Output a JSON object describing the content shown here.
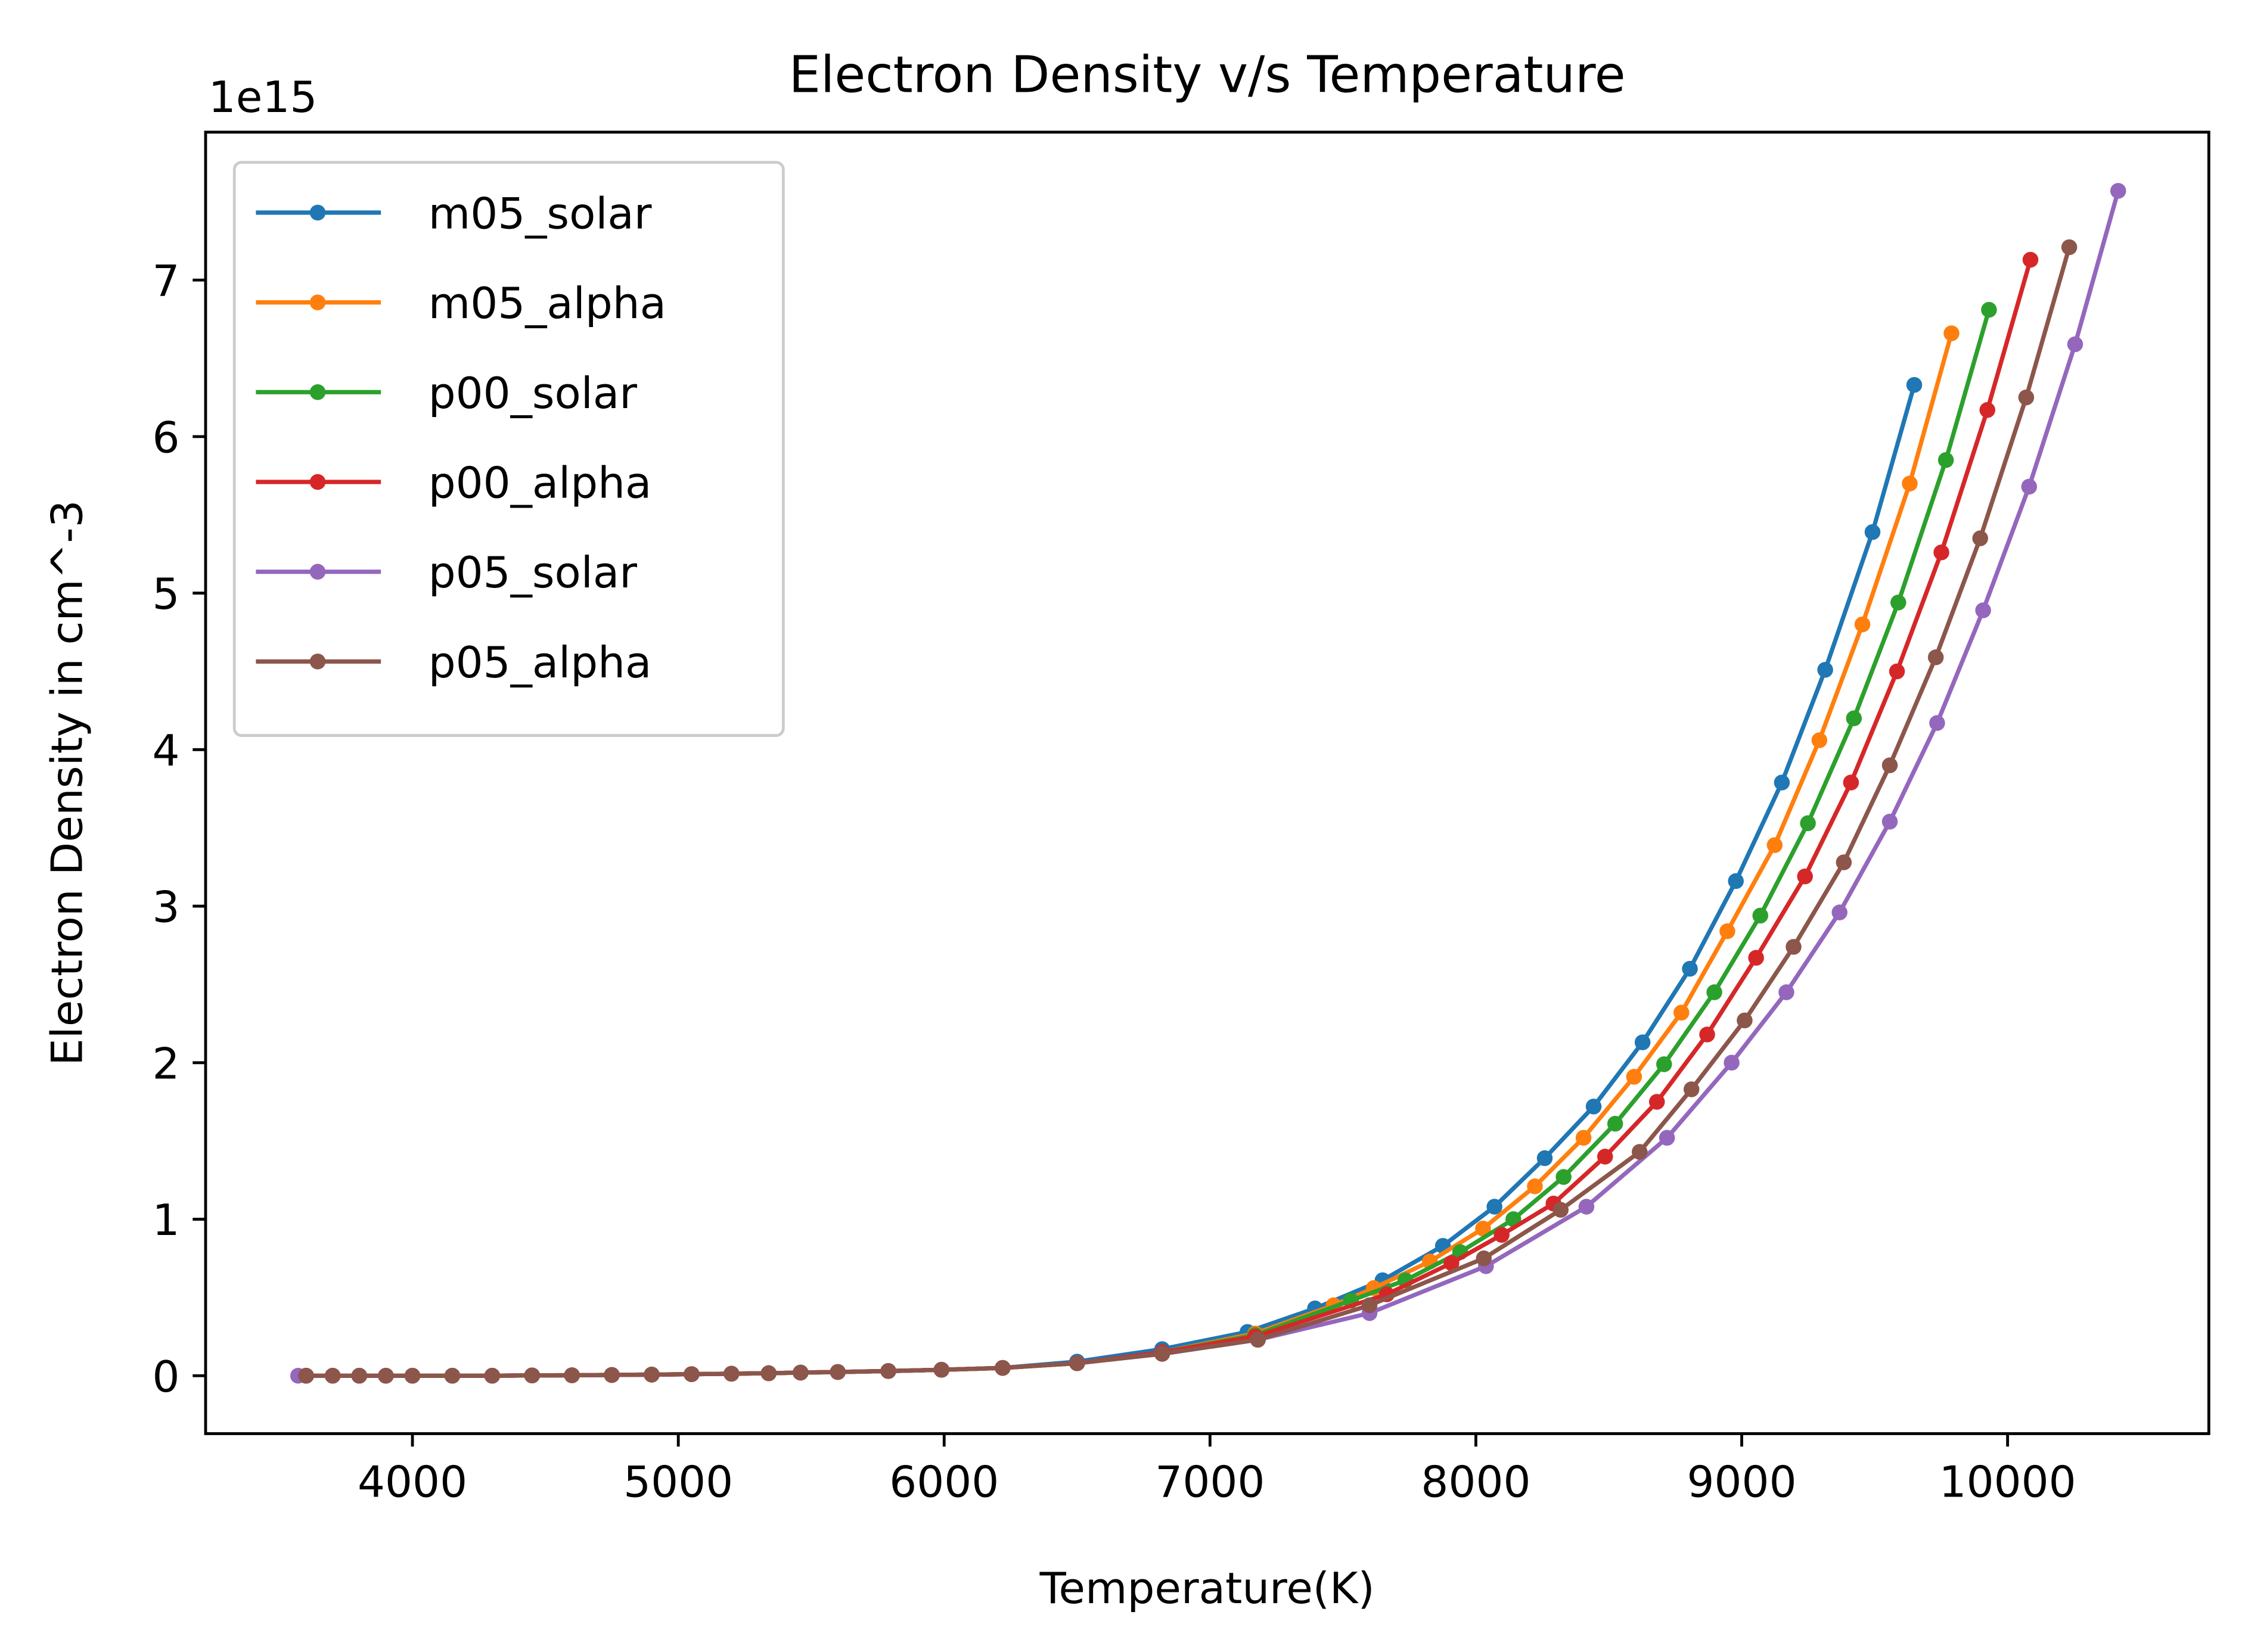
{
  "chart_data": {
    "type": "line",
    "title": "Electron Density v/s Temperature",
    "x_label": "Temperature(K)",
    "y_label": "Electron Density in cm^-3",
    "y_offset_label": "1e15",
    "xlim": [
      3222,
      10757
    ],
    "ylim": [
      -0.37,
      7.945
    ],
    "xticks": [
      4000,
      5000,
      6000,
      7000,
      8000,
      9000,
      10000
    ],
    "yticks": [
      0,
      1,
      2,
      3,
      4,
      5,
      6,
      7
    ],
    "legend": "upper left",
    "series": [
      {
        "name": "m05_solar",
        "color": "#1f77b4",
        "x": [
          3600,
          3700,
          3800,
          3900,
          4000,
          4150,
          4300,
          4450,
          4600,
          4750,
          4900,
          5050,
          5200,
          5340,
          5460,
          5600,
          5790,
          5990,
          6220,
          6500,
          6820,
          7141,
          7395,
          7649,
          7876,
          8070,
          8259,
          8443,
          8627,
          8805,
          8978,
          9151,
          9314,
          9492,
          9649
        ],
        "values": [
          0,
          0,
          0,
          0,
          0,
          0,
          0,
          0.002,
          0.003,
          0.005,
          0.007,
          0.01,
          0.013,
          0.016,
          0.02,
          0.024,
          0.03,
          0.038,
          0.05,
          0.09,
          0.17,
          0.28,
          0.43,
          0.61,
          0.83,
          1.08,
          1.39,
          1.72,
          2.13,
          2.6,
          3.16,
          3.79,
          4.51,
          5.39,
          6.33
        ]
      },
      {
        "name": "m05_alpha",
        "color": "#ff7f0e",
        "x": [
          3600,
          3700,
          3800,
          3900,
          4000,
          4150,
          4300,
          4450,
          4600,
          4750,
          4900,
          5050,
          5200,
          5340,
          5460,
          5600,
          5790,
          5990,
          6220,
          6500,
          6820,
          7170,
          7465,
          7616,
          7827,
          8027,
          8222,
          8405,
          8595,
          8773,
          8946,
          9124,
          9292,
          9454,
          9632,
          9789
        ],
        "values": [
          0,
          0,
          0,
          0,
          0,
          0,
          0,
          0.002,
          0.003,
          0.005,
          0.007,
          0.01,
          0.013,
          0.016,
          0.02,
          0.024,
          0.03,
          0.038,
          0.05,
          0.08,
          0.15,
          0.27,
          0.45,
          0.56,
          0.73,
          0.94,
          1.21,
          1.52,
          1.91,
          2.32,
          2.84,
          3.39,
          4.06,
          4.8,
          5.7,
          6.66
        ]
      },
      {
        "name": "p00_solar",
        "color": "#2ca02c",
        "x": [
          3600,
          3700,
          3800,
          3900,
          4000,
          4150,
          4300,
          4450,
          4600,
          4750,
          4900,
          5050,
          5200,
          5340,
          5460,
          5600,
          5790,
          5990,
          6220,
          6500,
          6820,
          7170,
          7530,
          7735,
          7941,
          8141,
          8330,
          8524,
          8708,
          8897,
          9070,
          9249,
          9422,
          9589,
          9768,
          9930
        ],
        "values": [
          0,
          0,
          0,
          0,
          0,
          0,
          0,
          0.002,
          0.003,
          0.005,
          0.007,
          0.01,
          0.013,
          0.016,
          0.02,
          0.024,
          0.03,
          0.038,
          0.05,
          0.08,
          0.15,
          0.26,
          0.48,
          0.61,
          0.79,
          1.0,
          1.27,
          1.61,
          1.99,
          2.45,
          2.94,
          3.53,
          4.2,
          4.94,
          5.85,
          6.81
        ]
      },
      {
        "name": "p00_alpha",
        "color": "#d62728",
        "x": [
          3600,
          3700,
          3800,
          3900,
          4000,
          4150,
          4300,
          4450,
          4600,
          4750,
          4900,
          5050,
          5200,
          5340,
          5460,
          5600,
          5790,
          5990,
          6220,
          6500,
          6820,
          7170,
          7665,
          7908,
          8097,
          8292,
          8486,
          8681,
          8870,
          9054,
          9238,
          9411,
          9584,
          9751,
          9924,
          10086
        ],
        "values": [
          0,
          0,
          0,
          0,
          0,
          0,
          0,
          0.002,
          0.003,
          0.005,
          0.007,
          0.01,
          0.013,
          0.016,
          0.02,
          0.024,
          0.03,
          0.038,
          0.05,
          0.08,
          0.15,
          0.25,
          0.52,
          0.72,
          0.9,
          1.1,
          1.4,
          1.75,
          2.18,
          2.67,
          3.19,
          3.79,
          4.5,
          5.26,
          6.17,
          7.13
        ]
      },
      {
        "name": "p05_solar",
        "color": "#9467bd",
        "x": [
          3570,
          3700,
          3800,
          3900,
          4000,
          4150,
          4300,
          4450,
          4600,
          4750,
          4900,
          5050,
          5200,
          5340,
          5460,
          5600,
          5790,
          5990,
          6220,
          6500,
          6820,
          7180,
          7600,
          8038,
          8416,
          8719,
          8962,
          9168,
          9368,
          9557,
          9735,
          9908,
          10081,
          10254,
          10416
        ],
        "values": [
          0,
          0,
          0,
          0,
          0,
          0,
          0,
          0.002,
          0.003,
          0.005,
          0.007,
          0.01,
          0.013,
          0.016,
          0.02,
          0.024,
          0.03,
          0.038,
          0.05,
          0.08,
          0.14,
          0.23,
          0.4,
          0.7,
          1.08,
          1.52,
          2.0,
          2.45,
          2.96,
          3.54,
          4.17,
          4.89,
          5.68,
          6.59,
          7.57
        ]
      },
      {
        "name": "p05_alpha",
        "color": "#8c564b",
        "x": [
          3600,
          3700,
          3800,
          3900,
          4000,
          4150,
          4300,
          4450,
          4600,
          4750,
          4900,
          5050,
          5200,
          5340,
          5460,
          5600,
          5790,
          5990,
          6220,
          6500,
          6820,
          7180,
          7600,
          8030,
          8319,
          8616,
          8811,
          9011,
          9195,
          9384,
          9557,
          9730,
          9897,
          10070,
          10232
        ],
        "values": [
          0,
          0,
          0,
          0,
          0,
          0,
          0,
          0.002,
          0.003,
          0.005,
          0.007,
          0.01,
          0.013,
          0.016,
          0.02,
          0.024,
          0.03,
          0.038,
          0.05,
          0.08,
          0.14,
          0.23,
          0.45,
          0.75,
          1.06,
          1.43,
          1.83,
          2.27,
          2.74,
          3.28,
          3.9,
          4.59,
          5.35,
          6.25,
          7.21
        ]
      }
    ]
  }
}
